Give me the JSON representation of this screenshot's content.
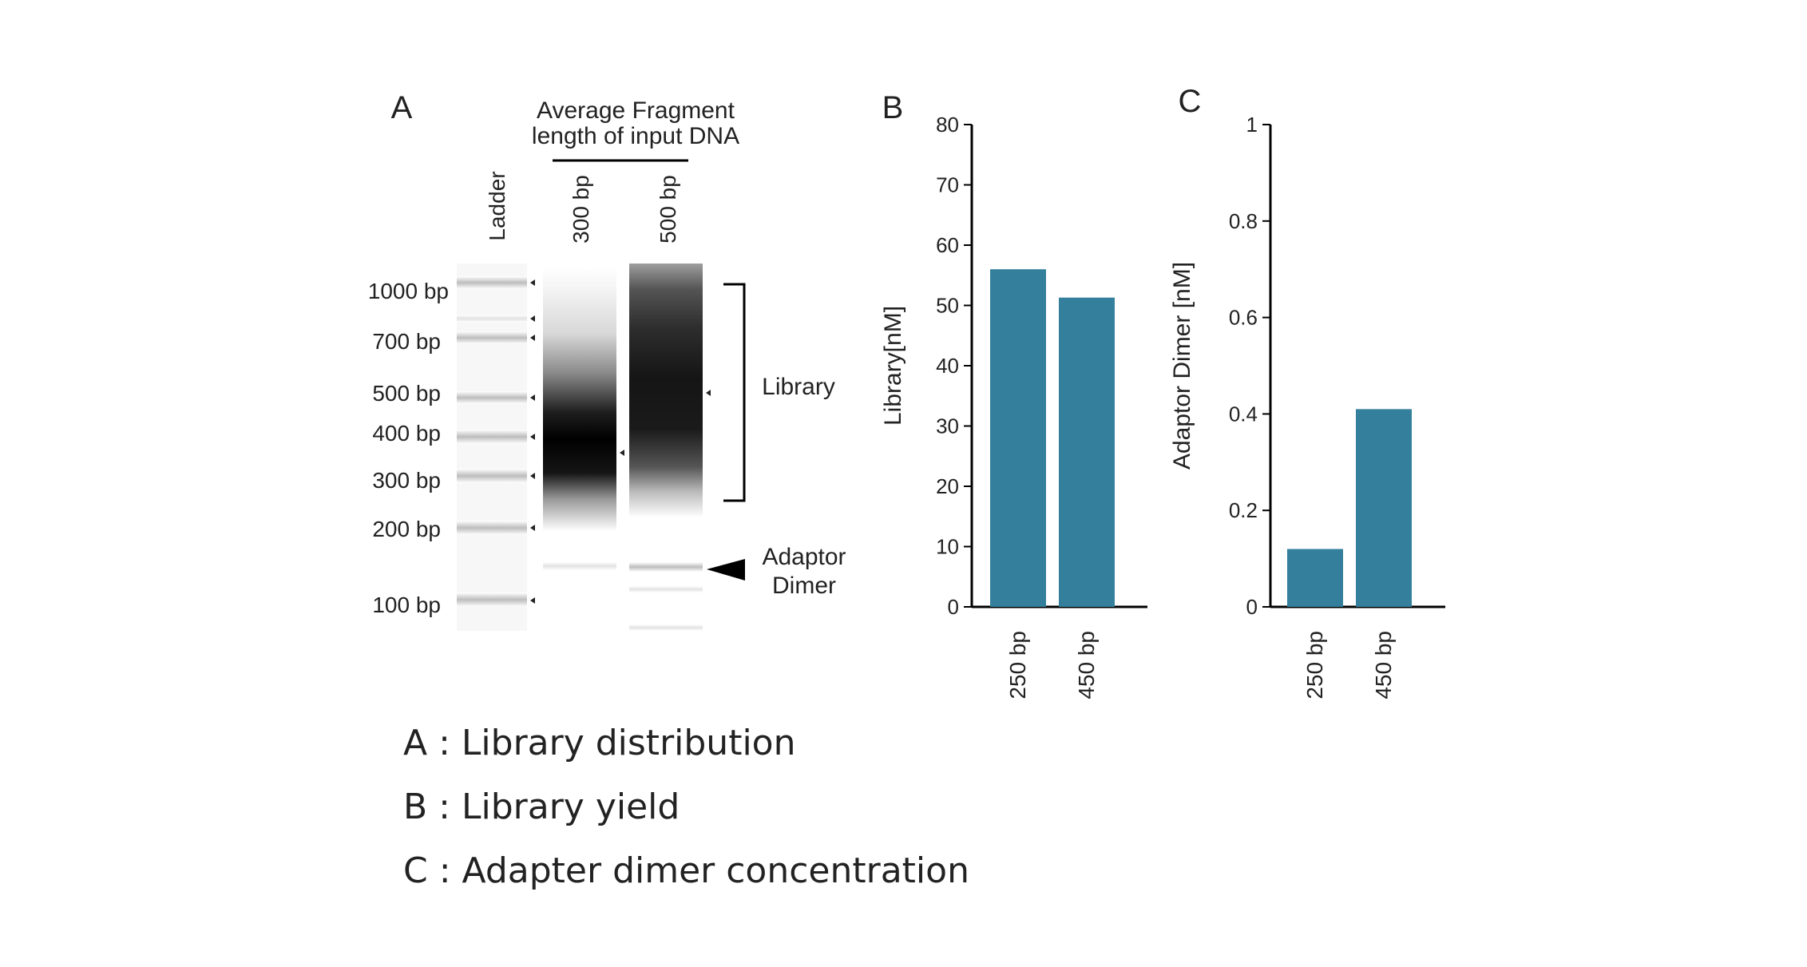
{
  "panel_a": {
    "label": "A",
    "header_line1": "Average Fragment",
    "header_line2": "length of input DNA",
    "lanes": [
      "Ladder",
      "300 bp",
      "500 bp"
    ],
    "ladder_markers": [
      "1000 bp",
      "700 bp",
      "500 bp",
      "400 bp",
      "300 bp",
      "200 bp",
      "100 bp"
    ],
    "library_label": "Library",
    "adaptor_label_line1": "Adaptor",
    "adaptor_label_line2": "Dimer"
  },
  "chart_data": [
    {
      "panel": "B",
      "type": "bar",
      "categories": [
        "250 bp",
        "450 bp"
      ],
      "values": [
        56,
        51.3
      ],
      "ylabel": "Library[nM]",
      "ylim": [
        0,
        80
      ],
      "yticks": [
        "0",
        "10",
        "20",
        "30",
        "40",
        "50",
        "60",
        "70",
        "80"
      ],
      "bar_color": "#337f9c"
    },
    {
      "panel": "C",
      "type": "bar",
      "categories": [
        "250 bp",
        "450 bp"
      ],
      "values": [
        0.12,
        0.41
      ],
      "ylabel": "Adaptor Dimer [nM]",
      "ylim": [
        0,
        1
      ],
      "yticks": [
        "0",
        "0.2",
        "0.4",
        "0.6",
        "0.8",
        "1"
      ],
      "bar_color": "#337f9c"
    }
  ],
  "legend": [
    "A : Library distribution",
    "B : Library yield",
    "C : Adapter dimer concentration"
  ]
}
